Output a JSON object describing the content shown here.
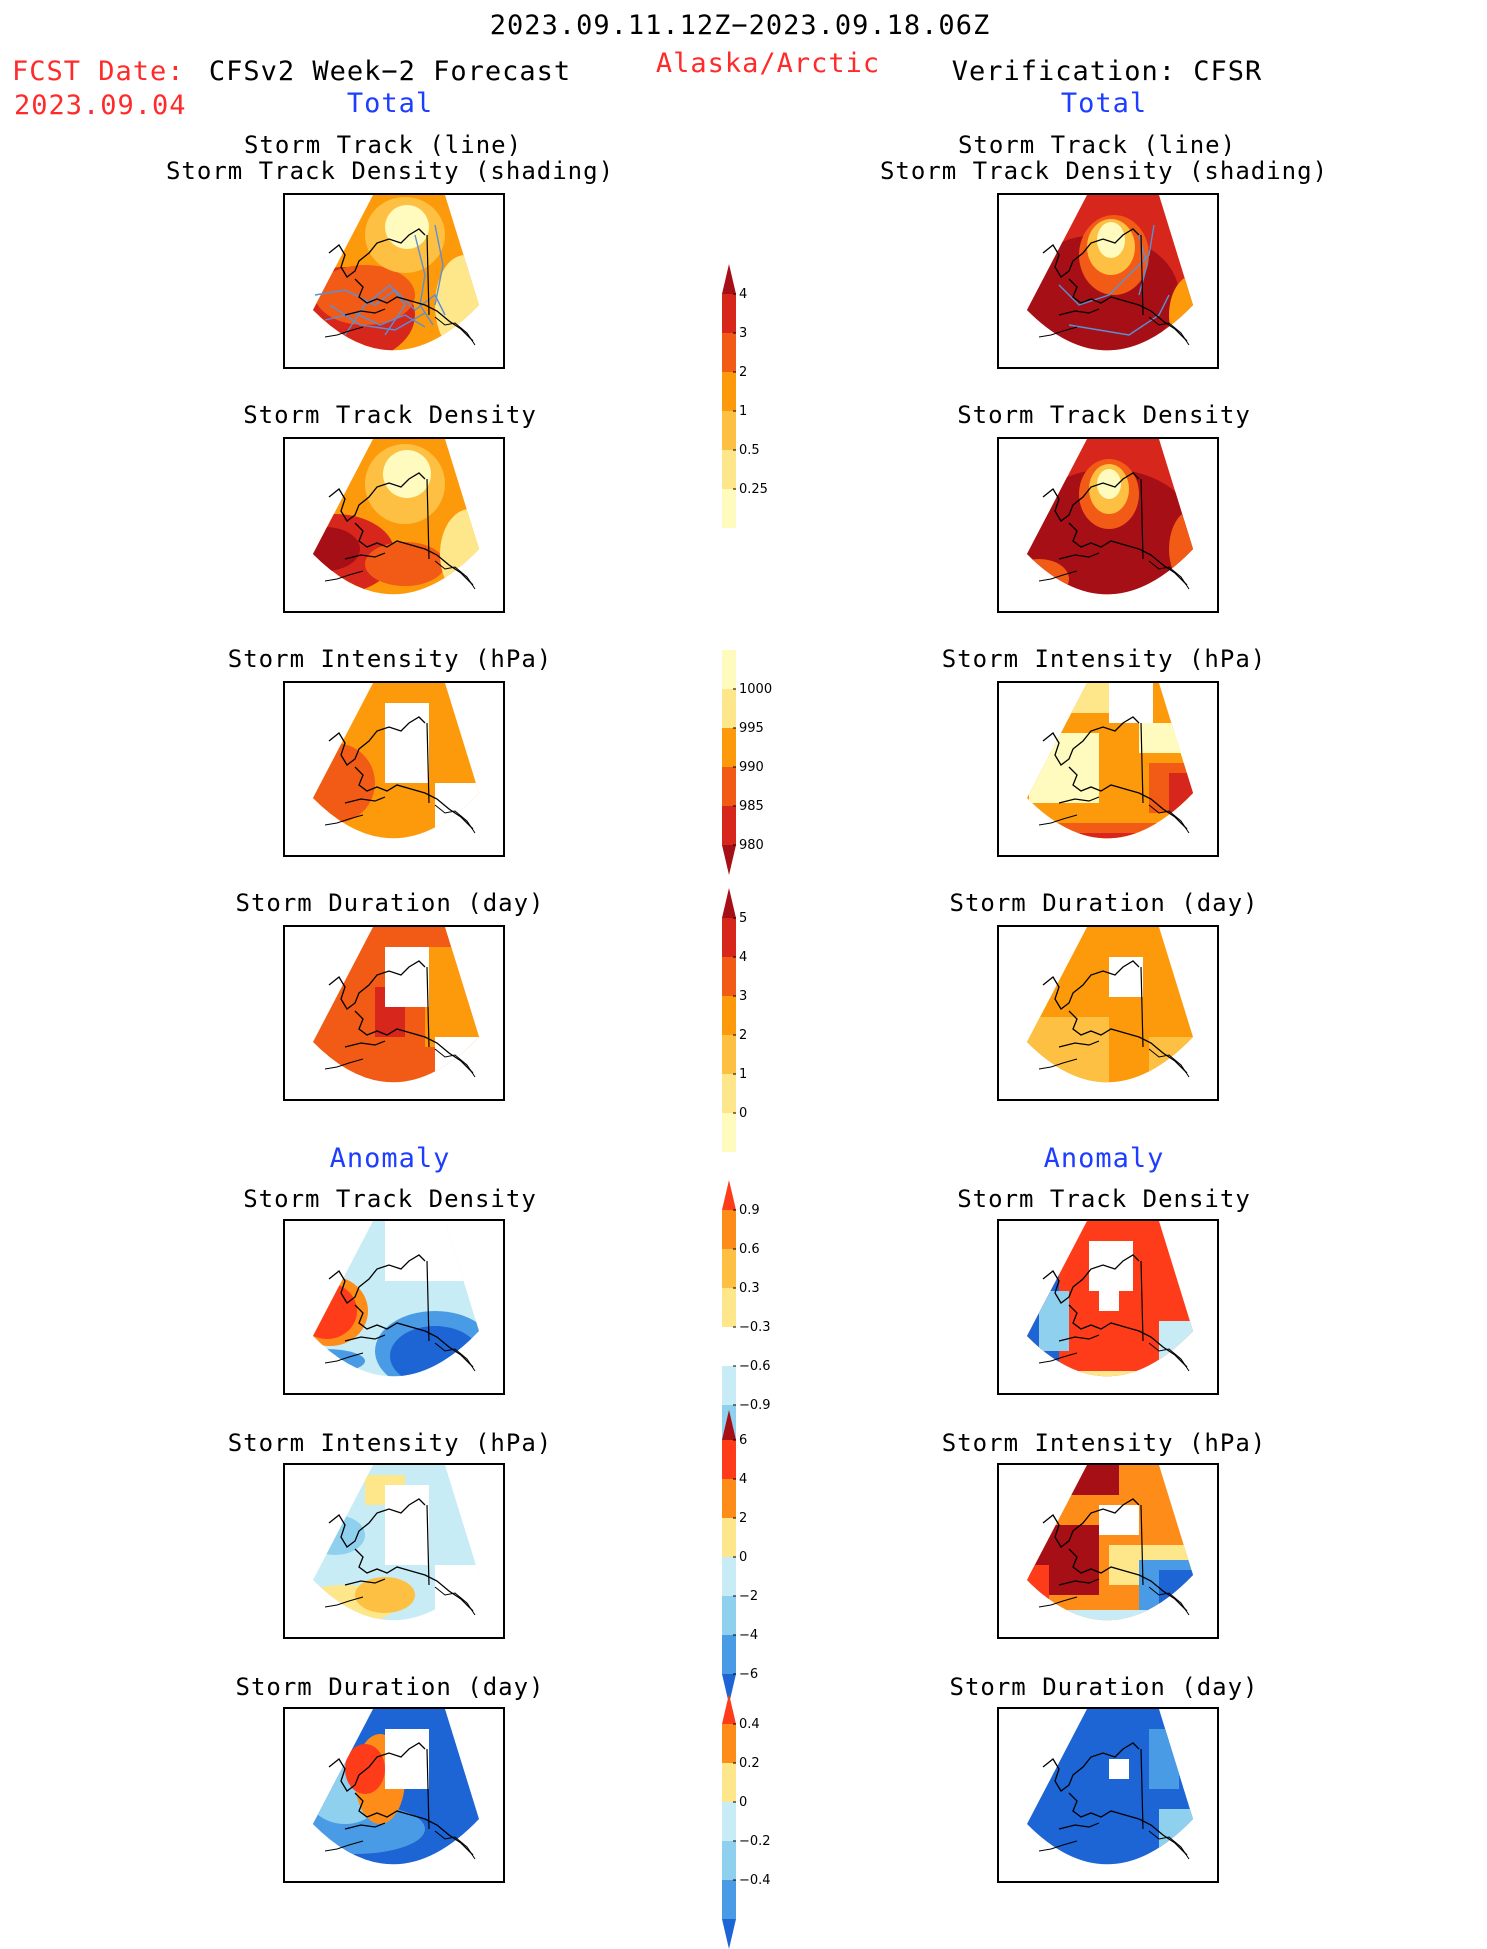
{
  "header": {
    "date_range": "2023.09.11.12Z−2023.09.18.06Z",
    "region": "Alaska/Arctic",
    "fcst_date_label": "FCST Date:",
    "fcst_date_value": "2023.09.04",
    "forecast_title": "CFSv2 Week−2 Forecast",
    "verification_title": "Verification: CFSR",
    "total_left": "Total",
    "total_right": "Total",
    "anomaly_left": "Anomaly",
    "anomaly_right": "Anomaly"
  },
  "panel_titles": {
    "track_line": "Storm Track (line)",
    "track_density_shading": "Storm Track Density (shading)",
    "track_density": "Storm Track Density",
    "intensity": "Storm Intensity (hPa)",
    "duration": "Storm Duration (day)"
  },
  "colorbars": {
    "density_total": {
      "ticks": [
        "4",
        "3",
        "2",
        "1",
        "0.5",
        "0.25"
      ],
      "colors": [
        "#a50f15",
        "#d7261b",
        "#f25b16",
        "#fd9a0c",
        "#fdc043",
        "#fee68a",
        "#fffbbf"
      ]
    },
    "intensity_total": {
      "ticks": [
        "1000",
        "995",
        "990",
        "985",
        "980"
      ],
      "colors": [
        "#fffbbf",
        "#fee68a",
        "#fd9a0c",
        "#f25b16",
        "#d7261b",
        "#a50f15"
      ]
    },
    "duration_total": {
      "ticks": [
        "5",
        "4",
        "3",
        "2",
        "1",
        "0"
      ],
      "colors": [
        "#a50f15",
        "#d7261b",
        "#f25b16",
        "#fd9a0c",
        "#fdc043",
        "#fee68a",
        "#fffbbf"
      ]
    },
    "density_anomaly": {
      "ticks": [
        "0.9",
        "0.6",
        "0.3",
        "−0.3",
        "−0.6",
        "−0.9"
      ],
      "colors": [
        "#ff3c1a",
        "#fd8c18",
        "#fdc043",
        "#fee68a",
        "#ffffff",
        "#c8ecf5",
        "#8fd0ee",
        "#4a9be5",
        "#1d64d4"
      ]
    },
    "intensity_anomaly": {
      "ticks": [
        "6",
        "4",
        "2",
        "0",
        "−2",
        "−4",
        "−6"
      ],
      "colors": [
        "#a50f15",
        "#ff3c1a",
        "#fd8c18",
        "#fee68a",
        "#c8ecf5",
        "#8fd0ee",
        "#4a9be5",
        "#1d64d4"
      ]
    },
    "duration_anomaly": {
      "ticks": [
        "0.4",
        "0.2",
        "0",
        "−0.2",
        "−0.4"
      ],
      "colors": [
        "#ff3c1a",
        "#fd8c18",
        "#fee68a",
        "#c8ecf5",
        "#8fd0ee",
        "#4a9be5",
        "#1d64d4"
      ]
    }
  },
  "colors": {
    "dark_red": "#a50f15",
    "red": "#d7261b",
    "orange_red": "#f25b16",
    "orange": "#fd9a0c",
    "light_orange": "#fdc043",
    "yellow": "#fee68a",
    "pale_yellow": "#fffbbf",
    "light_blue": "#c8ecf5",
    "blue": "#1d64d4",
    "track_line": "#5b8fd6"
  }
}
